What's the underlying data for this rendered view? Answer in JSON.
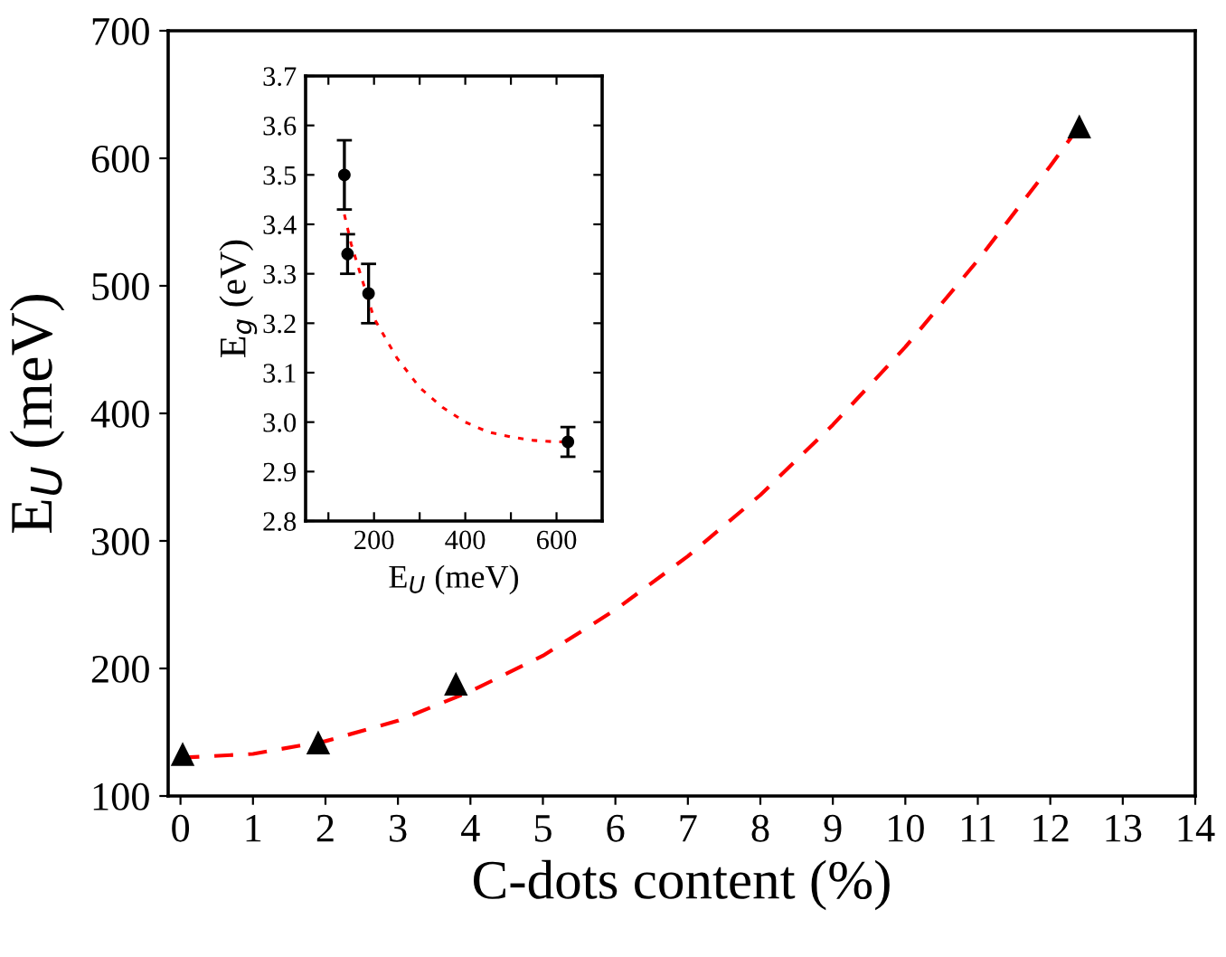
{
  "chart_data": [
    {
      "type": "scatter",
      "xlabel": "C-dots content (%)",
      "ylabel": "E$_{U}$ (meV)",
      "xlim": [
        -0.17,
        14
      ],
      "ylim": [
        100,
        700
      ],
      "xticks": [
        0,
        1,
        2,
        3,
        4,
        5,
        6,
        7,
        8,
        9,
        10,
        11,
        12,
        13,
        14
      ],
      "yticks": [
        100,
        200,
        300,
        400,
        500,
        600,
        700
      ],
      "grid": false,
      "legend": false,
      "series": [
        {
          "color": "#000000",
          "marker": "triangle",
          "x": [
            0.03,
            1.9,
            3.8,
            12.4
          ],
          "values": [
            133,
            142,
            188,
            625
          ],
          "errors": [
            6,
            6,
            6,
            6
          ]
        },
        {
          "type": "line",
          "color": "#ff0000",
          "marker": "none",
          "line_style": "dashed",
          "x": [
            0,
            1,
            2,
            3,
            4,
            5,
            6,
            7,
            8,
            9,
            10,
            11,
            12,
            12.4
          ],
          "values": [
            130,
            133,
            143,
            159,
            182,
            210,
            246,
            288,
            336,
            391,
            452,
            520,
            594,
            625
          ]
        }
      ]
    },
    {
      "type": "scatter",
      "xlabel": "E$_{U}$ (meV)",
      "ylabel": "E$_{g}$ (eV)",
      "xlim": [
        50,
        700
      ],
      "ylim": [
        2.8,
        3.7
      ],
      "xticks": [
        {
          "value": 100,
          "label": null
        },
        200,
        {
          "value": 300,
          "label": null
        },
        400,
        {
          "value": 500,
          "label": null
        },
        600
      ],
      "yticks": [
        2.8,
        2.9,
        {
          "value": 3.0,
          "label": "3.0"
        },
        3.1,
        3.2,
        3.3,
        3.4,
        3.5,
        3.6,
        3.7
      ],
      "grid": false,
      "legend": false,
      "series": [
        {
          "color": "#000000",
          "marker": "circle",
          "x": [
            135,
            142,
            188,
            625
          ],
          "values": [
            3.5,
            3.34,
            3.26,
            2.96
          ],
          "errors": [
            0.07,
            0.04,
            0.06,
            0.03
          ]
        },
        {
          "type": "line",
          "color": "#ff0000",
          "marker": "none",
          "line_style": "dotted",
          "x": [
            135,
            150,
            200,
            250,
            300,
            350,
            400,
            450,
            500,
            550,
            600,
            625
          ],
          "values": [
            3.42,
            3.36,
            3.21,
            3.13,
            3.07,
            3.03,
            3.0,
            2.98,
            2.97,
            2.963,
            2.96,
            2.96
          ]
        }
      ]
    }
  ]
}
